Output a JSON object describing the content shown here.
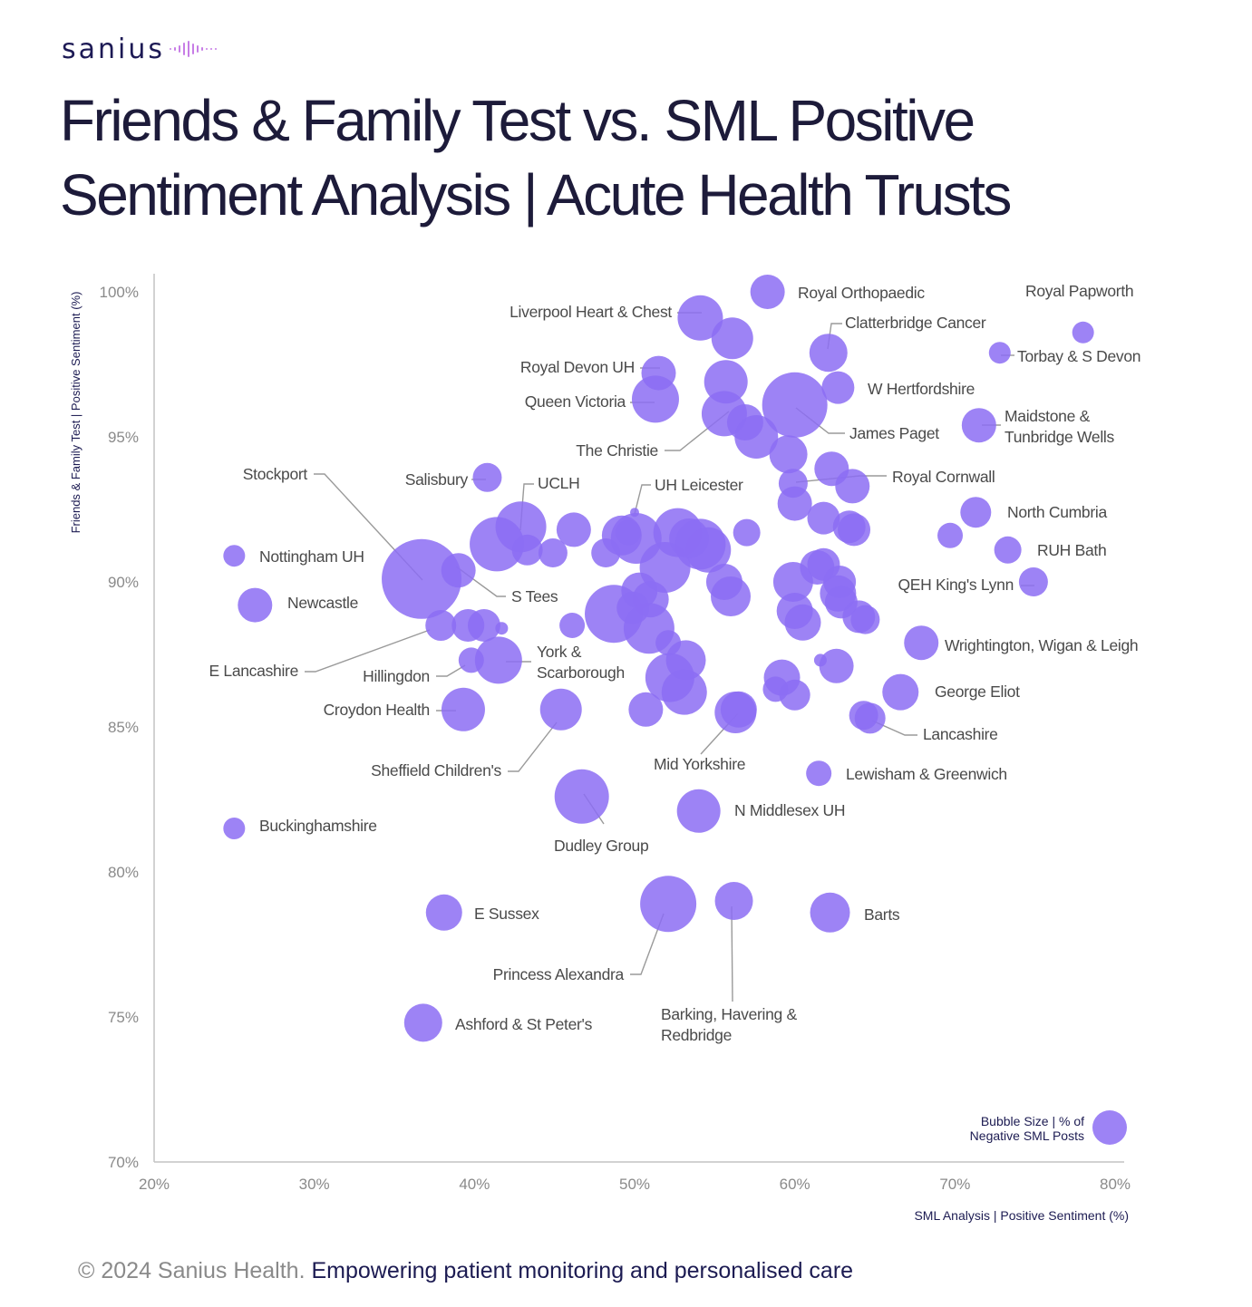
{
  "brand": {
    "logo": "sanius"
  },
  "title": {
    "line1": "Friends & Family Test vs. SML Positive",
    "line2": "Sentiment Analysis | Acute Health Trusts"
  },
  "footer": {
    "copyright": "© 2024 Sanius Health.",
    "tagline": "Empowering patient monitoring and personalised care"
  },
  "colors": {
    "bubble": "#8c6df3",
    "title": "#1d1b3a",
    "navy": "#1c1b52",
    "axis": "#c4c4c4",
    "leader": "#9a9a9a",
    "label": "#4a4a4a"
  },
  "chart_data": {
    "type": "scatter",
    "xlabel": "SML Analysis | Positive Sentiment (%)",
    "ylabel": "Friends & Family Test | Positive Sentiment (%)",
    "xlim": [
      20,
      80
    ],
    "ylim": [
      70,
      100
    ],
    "x_ticks": [
      "20%",
      "30%",
      "40%",
      "50%",
      "60%",
      "70%",
      "80%"
    ],
    "y_ticks": [
      "70%",
      "75%",
      "80%",
      "85%",
      "90%",
      "95%",
      "100%"
    ],
    "grid": false,
    "size_legend": {
      "line1": "Bubble Size | % of",
      "line2": "Negative SML Posts"
    },
    "size_unit": "relative bubble radius",
    "labeled": [
      {
        "name": "Royal Orthopaedic",
        "x": 58.3,
        "y": 100.0,
        "size": 19
      },
      {
        "name": "Royal Papworth",
        "x": 78.0,
        "y": 98.6,
        "size": 12
      },
      {
        "name": "Liverpool Heart & Chest",
        "x": 54.1,
        "y": 99.1,
        "size": 25
      },
      {
        "name": "Clatterbridge Cancer",
        "x": 62.1,
        "y": 97.9,
        "size": 21
      },
      {
        "name": "Torbay & S Devon",
        "x": 72.8,
        "y": 97.9,
        "size": 12
      },
      {
        "name": "Royal Devon UH",
        "x": 51.5,
        "y": 97.2,
        "size": 19
      },
      {
        "name": "W Hertfordshire",
        "x": 62.7,
        "y": 96.7,
        "size": 18
      },
      {
        "name": "Queen Victoria",
        "x": 51.3,
        "y": 96.3,
        "size": 26
      },
      {
        "name": "James Paget",
        "x": 60.0,
        "y": 96.1,
        "size": 36
      },
      {
        "name": "Maidstone & Tunbridge Wells",
        "x": 71.5,
        "y": 95.4,
        "size": 19
      },
      {
        "name": "The Christie",
        "x": 55.6,
        "y": 95.8,
        "size": 25
      },
      {
        "name": "Salisbury",
        "x": 40.8,
        "y": 93.6,
        "size": 16
      },
      {
        "name": "Royal Cornwall",
        "x": 63.6,
        "y": 93.3,
        "size": 19
      },
      {
        "name": "UCLH",
        "x": 42.9,
        "y": 91.9,
        "size": 28
      },
      {
        "name": "UH Leicester",
        "x": 50.0,
        "y": 92.4,
        "size": 5
      },
      {
        "name": "North Cumbria",
        "x": 71.3,
        "y": 92.4,
        "size": 17
      },
      {
        "name": "Stockport",
        "x": 36.7,
        "y": 90.1,
        "size": 44
      },
      {
        "name": "Nottingham UH",
        "x": 25.0,
        "y": 90.9,
        "size": 12
      },
      {
        "name": "RUH Bath",
        "x": 73.3,
        "y": 91.1,
        "size": 15
      },
      {
        "name": "S Tees",
        "x": 39.0,
        "y": 90.4,
        "size": 19
      },
      {
        "name": "QEH King's Lynn",
        "x": 74.9,
        "y": 90.0,
        "size": 16
      },
      {
        "name": "Newcastle",
        "x": 26.3,
        "y": 89.2,
        "size": 19
      },
      {
        "name": "E Lancashire",
        "x": 37.9,
        "y": 88.5,
        "size": 17
      },
      {
        "name": "Wrightington, Wigan & Leigh",
        "x": 67.9,
        "y": 87.9,
        "size": 19
      },
      {
        "name": "York & Scarborough",
        "x": 41.5,
        "y": 87.3,
        "size": 26
      },
      {
        "name": "Hillingdon",
        "x": 39.8,
        "y": 87.3,
        "size": 14
      },
      {
        "name": "George Eliot",
        "x": 66.6,
        "y": 86.2,
        "size": 20
      },
      {
        "name": "Croydon Health",
        "x": 39.3,
        "y": 85.6,
        "size": 24
      },
      {
        "name": "Lancashire",
        "x": 64.7,
        "y": 85.3,
        "size": 17
      },
      {
        "name": "Sheffield Children's",
        "x": 45.4,
        "y": 85.6,
        "size": 23
      },
      {
        "name": "Mid Yorkshire",
        "x": 56.3,
        "y": 85.5,
        "size": 23
      },
      {
        "name": "Lewisham & Greenwich",
        "x": 61.5,
        "y": 83.4,
        "size": 14
      },
      {
        "name": "N Middlesex UH",
        "x": 54.0,
        "y": 82.1,
        "size": 24
      },
      {
        "name": "Dudley Group",
        "x": 46.7,
        "y": 82.6,
        "size": 30
      },
      {
        "name": "Buckinghamshire",
        "x": 25.0,
        "y": 81.5,
        "size": 12
      },
      {
        "name": "E Sussex",
        "x": 38.1,
        "y": 78.6,
        "size": 20
      },
      {
        "name": "Barts",
        "x": 62.2,
        "y": 78.6,
        "size": 22
      },
      {
        "name": "Princess Alexandra",
        "x": 52.1,
        "y": 78.9,
        "size": 31
      },
      {
        "name": "Barking, Havering & Redbridge",
        "x": 56.2,
        "y": 79.0,
        "size": 21
      },
      {
        "name": "Ashford & St Peter's",
        "x": 36.8,
        "y": 74.8,
        "size": 21
      }
    ],
    "unlabeled": [
      {
        "x": 56.1,
        "y": 98.4,
        "size": 23
      },
      {
        "x": 55.7,
        "y": 96.9,
        "size": 24
      },
      {
        "x": 56.9,
        "y": 95.5,
        "size": 20
      },
      {
        "x": 57.6,
        "y": 95.0,
        "size": 24
      },
      {
        "x": 59.6,
        "y": 94.4,
        "size": 21
      },
      {
        "x": 62.3,
        "y": 93.9,
        "size": 19
      },
      {
        "x": 59.9,
        "y": 93.4,
        "size": 16
      },
      {
        "x": 60.0,
        "y": 92.7,
        "size": 19
      },
      {
        "x": 61.8,
        "y": 92.2,
        "size": 18
      },
      {
        "x": 63.4,
        "y": 91.9,
        "size": 18
      },
      {
        "x": 63.7,
        "y": 91.8,
        "size": 18
      },
      {
        "x": 57.0,
        "y": 91.7,
        "size": 15
      },
      {
        "x": 69.7,
        "y": 91.6,
        "size": 14
      },
      {
        "x": 46.2,
        "y": 91.8,
        "size": 19
      },
      {
        "x": 43.3,
        "y": 91.1,
        "size": 17
      },
      {
        "x": 44.9,
        "y": 91.0,
        "size": 16
      },
      {
        "x": 48.2,
        "y": 91.0,
        "size": 16
      },
      {
        "x": 41.4,
        "y": 91.3,
        "size": 30
      },
      {
        "x": 49.2,
        "y": 91.6,
        "size": 22
      },
      {
        "x": 50.1,
        "y": 91.5,
        "size": 28
      },
      {
        "x": 49.6,
        "y": 91.7,
        "size": 14
      },
      {
        "x": 52.7,
        "y": 91.7,
        "size": 27
      },
      {
        "x": 53.4,
        "y": 91.5,
        "size": 22
      },
      {
        "x": 54.1,
        "y": 91.3,
        "size": 28
      },
      {
        "x": 54.6,
        "y": 91.1,
        "size": 25
      },
      {
        "x": 51.9,
        "y": 90.5,
        "size": 28
      },
      {
        "x": 50.3,
        "y": 89.7,
        "size": 20
      },
      {
        "x": 51.0,
        "y": 89.4,
        "size": 20
      },
      {
        "x": 48.7,
        "y": 88.9,
        "size": 32
      },
      {
        "x": 49.9,
        "y": 89.1,
        "size": 18
      },
      {
        "x": 50.9,
        "y": 88.4,
        "size": 28
      },
      {
        "x": 55.6,
        "y": 90.0,
        "size": 20
      },
      {
        "x": 56.0,
        "y": 89.5,
        "size": 22
      },
      {
        "x": 59.9,
        "y": 90.0,
        "size": 22
      },
      {
        "x": 60.0,
        "y": 89.0,
        "size": 20
      },
      {
        "x": 60.5,
        "y": 88.6,
        "size": 20
      },
      {
        "x": 61.4,
        "y": 90.5,
        "size": 19
      },
      {
        "x": 61.8,
        "y": 90.6,
        "size": 18
      },
      {
        "x": 62.8,
        "y": 90.0,
        "size": 18
      },
      {
        "x": 62.7,
        "y": 89.6,
        "size": 20
      },
      {
        "x": 62.9,
        "y": 89.3,
        "size": 18
      },
      {
        "x": 64.0,
        "y": 88.8,
        "size": 18
      },
      {
        "x": 64.4,
        "y": 88.7,
        "size": 16
      },
      {
        "x": 46.1,
        "y": 88.5,
        "size": 14
      },
      {
        "x": 40.6,
        "y": 88.5,
        "size": 18
      },
      {
        "x": 39.6,
        "y": 88.5,
        "size": 18
      },
      {
        "x": 41.7,
        "y": 88.4,
        "size": 7
      },
      {
        "x": 52.1,
        "y": 87.9,
        "size": 14
      },
      {
        "x": 53.2,
        "y": 87.3,
        "size": 22
      },
      {
        "x": 52.2,
        "y": 86.7,
        "size": 27
      },
      {
        "x": 53.1,
        "y": 86.2,
        "size": 25
      },
      {
        "x": 50.7,
        "y": 85.6,
        "size": 19
      },
      {
        "x": 59.2,
        "y": 86.7,
        "size": 20
      },
      {
        "x": 58.8,
        "y": 86.3,
        "size": 14
      },
      {
        "x": 60.0,
        "y": 86.1,
        "size": 17
      },
      {
        "x": 62.6,
        "y": 87.1,
        "size": 19
      },
      {
        "x": 61.6,
        "y": 87.3,
        "size": 7
      },
      {
        "x": 56.5,
        "y": 85.6,
        "size": 20
      },
      {
        "x": 64.3,
        "y": 85.4,
        "size": 16
      }
    ]
  }
}
